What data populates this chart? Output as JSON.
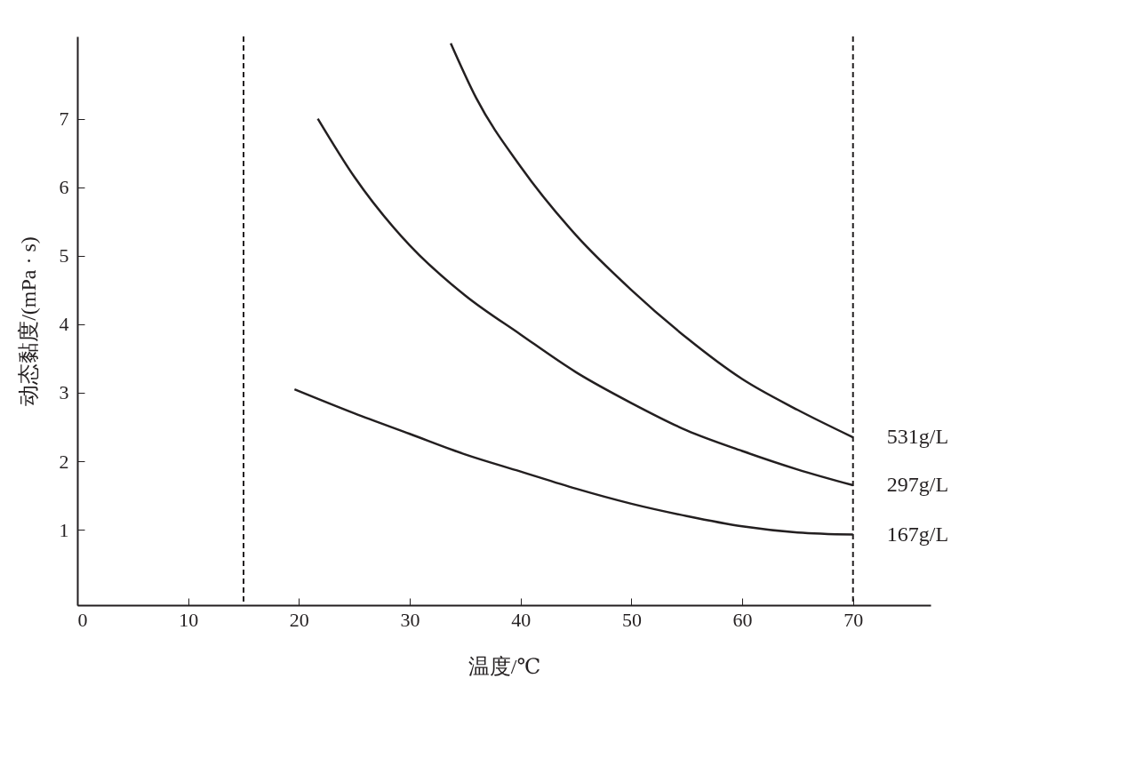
{
  "chart_data": {
    "type": "line",
    "xlabel": "温度/℃",
    "ylabel": "动态黏度/(mPa · s)",
    "xlim": [
      0,
      77
    ],
    "xticks": [
      0,
      10,
      20,
      30,
      40,
      50,
      60,
      70
    ],
    "ylim": [
      -0.1,
      8.2
    ],
    "yticks": [
      1,
      2,
      3,
      4,
      5,
      6,
      7
    ],
    "grid": false,
    "marker": "none",
    "line_style": "solid",
    "series": [
      {
        "name": "531g/L",
        "color": "#231f20",
        "x": [
          33.7,
          36,
          40,
          45,
          50,
          55,
          60,
          65,
          70
        ],
        "values": [
          8.1,
          7.3,
          6.3,
          5.3,
          4.5,
          3.8,
          3.2,
          2.75,
          2.35
        ]
      },
      {
        "name": "297g/L",
        "color": "#231f20",
        "x": [
          21.7,
          25,
          30,
          35,
          40,
          45,
          50,
          55,
          60,
          65,
          70
        ],
        "values": [
          7.0,
          6.15,
          5.15,
          4.42,
          3.85,
          3.3,
          2.85,
          2.45,
          2.15,
          1.88,
          1.65
        ]
      },
      {
        "name": "167g/L",
        "color": "#231f20",
        "x": [
          19.6,
          25,
          30,
          35,
          40,
          45,
          50,
          55,
          60,
          65,
          70
        ],
        "values": [
          3.05,
          2.7,
          2.4,
          2.1,
          1.85,
          1.6,
          1.38,
          1.2,
          1.05,
          0.96,
          0.93
        ]
      }
    ],
    "ref_lines": [
      {
        "axis": "x",
        "value": 15,
        "color": "#231f20",
        "line_style": "dashed"
      },
      {
        "axis": "x",
        "value": 70,
        "color": "#231f20",
        "line_style": "dashed"
      }
    ]
  }
}
